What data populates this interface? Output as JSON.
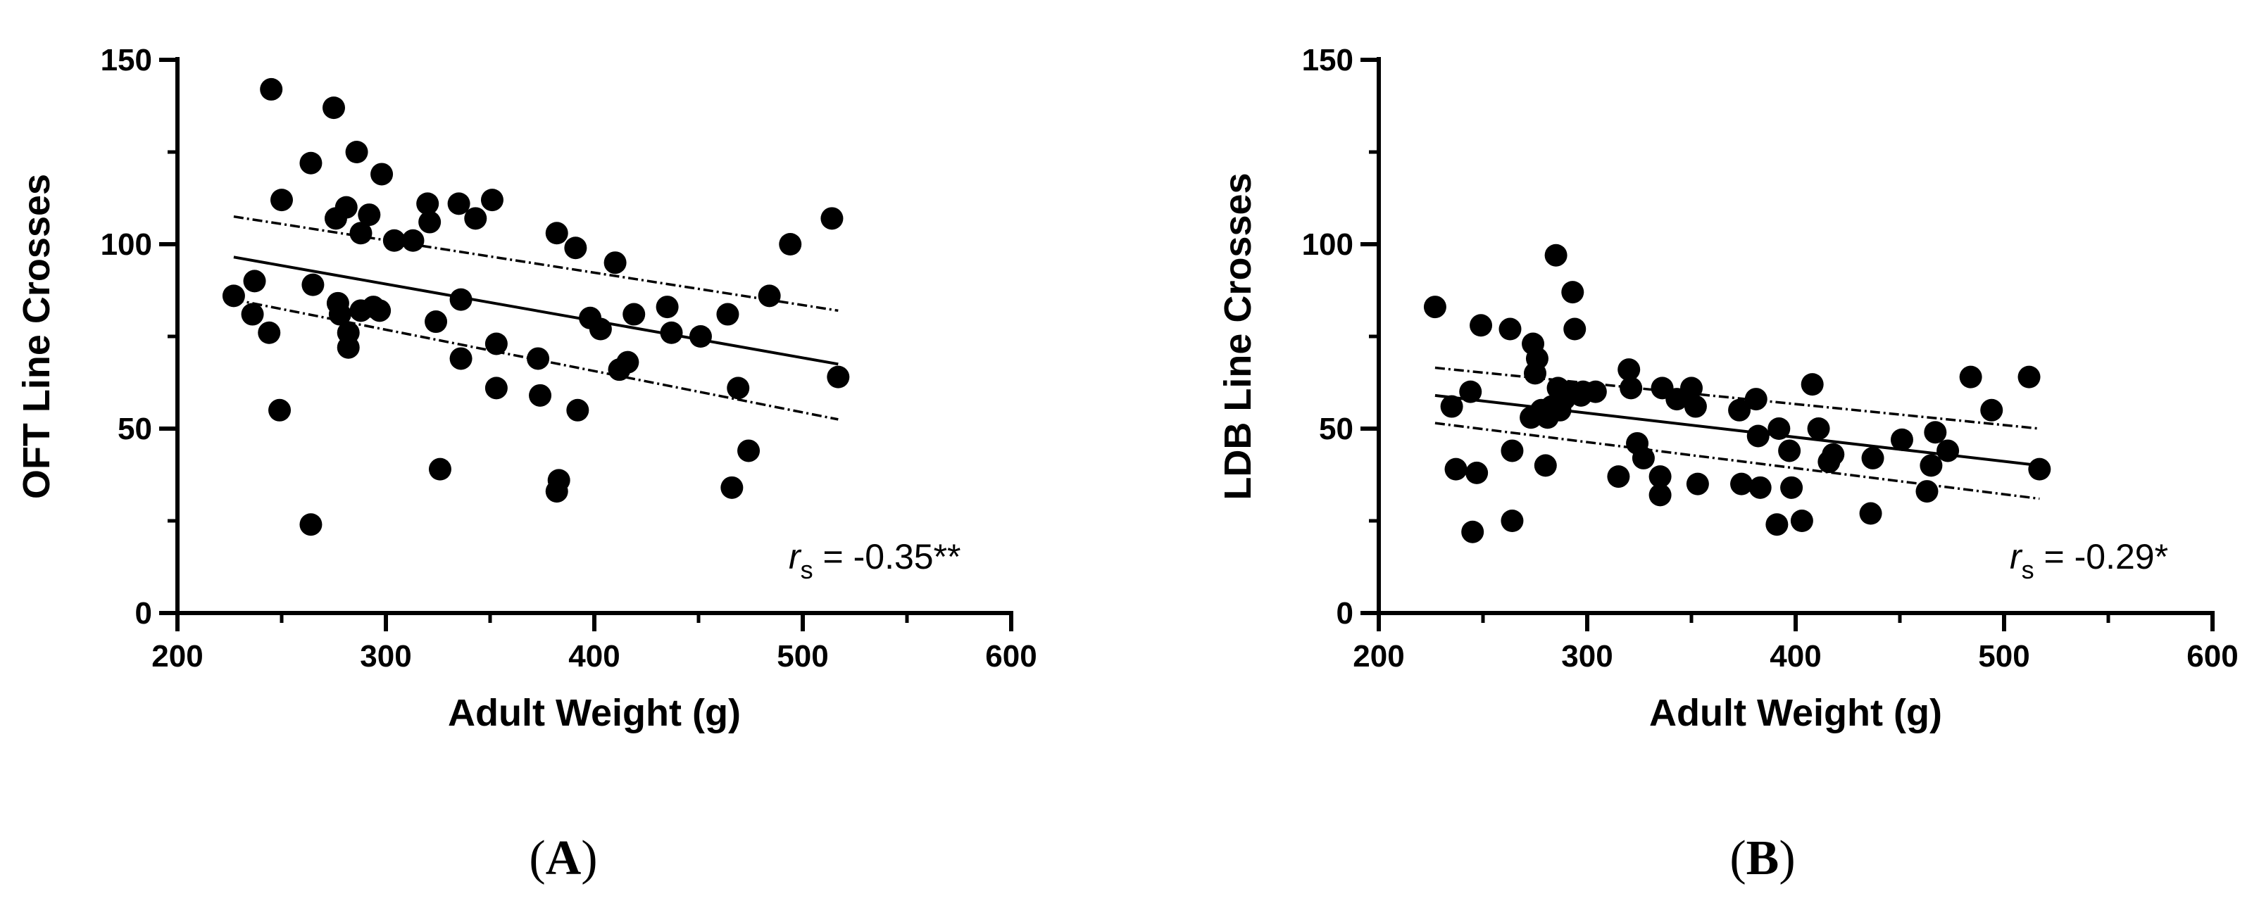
{
  "chart_data": [
    {
      "panel": "(A)",
      "panel_letter": "A",
      "type": "scatter",
      "xlabel": "Adult Weight (g)",
      "ylabel": "OFT Line Crosses",
      "xlim": [
        200,
        600
      ],
      "ylim": [
        0,
        150
      ],
      "x_ticks": [
        "200",
        "300",
        "400",
        "500",
        "600"
      ],
      "y_ticks": [
        "0",
        "50",
        "100",
        "150"
      ],
      "annotation": {
        "symbol": "r",
        "subscript": "s",
        "value": " =  -0.35**"
      },
      "regression": {
        "x": [
          227,
          517
        ],
        "fit": [
          96.5,
          67.5
        ],
        "ci_upper": [
          107.5,
          82
        ],
        "ci_lower": [
          85,
          52.5
        ]
      },
      "points": [
        [
          227,
          86
        ],
        [
          237,
          90
        ],
        [
          236,
          81
        ],
        [
          244,
          76
        ],
        [
          245,
          142
        ],
        [
          250,
          112
        ],
        [
          249,
          55
        ],
        [
          264,
          122
        ],
        [
          265,
          89
        ],
        [
          264,
          24
        ],
        [
          275,
          137
        ],
        [
          276,
          107
        ],
        [
          277,
          84
        ],
        [
          278,
          81
        ],
        [
          281,
          110
        ],
        [
          282,
          76
        ],
        [
          282,
          72
        ],
        [
          286,
          125
        ],
        [
          288,
          103
        ],
        [
          288,
          82
        ],
        [
          292,
          108
        ],
        [
          294,
          83
        ],
        [
          297,
          82
        ],
        [
          298,
          119
        ],
        [
          304,
          101
        ],
        [
          313,
          101
        ],
        [
          320,
          111
        ],
        [
          321,
          106
        ],
        [
          324,
          79
        ],
        [
          326,
          39
        ],
        [
          335,
          111
        ],
        [
          336,
          69
        ],
        [
          336,
          85
        ],
        [
          343,
          107
        ],
        [
          351,
          112
        ],
        [
          353,
          73
        ],
        [
          353,
          61
        ],
        [
          373,
          69
        ],
        [
          374,
          59
        ],
        [
          382,
          103
        ],
        [
          383,
          36
        ],
        [
          382,
          33
        ],
        [
          391,
          99
        ],
        [
          392,
          55
        ],
        [
          398,
          80
        ],
        [
          403,
          77
        ],
        [
          410,
          95
        ],
        [
          412,
          66
        ],
        [
          416,
          68
        ],
        [
          419,
          81
        ],
        [
          435,
          83
        ],
        [
          437,
          76
        ],
        [
          451,
          75
        ],
        [
          464,
          81
        ],
        [
          466,
          34
        ],
        [
          469,
          61
        ],
        [
          474,
          44
        ],
        [
          484,
          86
        ],
        [
          494,
          100
        ],
        [
          514,
          107
        ],
        [
          517,
          64
        ]
      ]
    },
    {
      "panel": "(B)",
      "panel_letter": "B",
      "type": "scatter",
      "xlabel": "Adult Weight (g)",
      "ylabel": "LDB Line Crosses",
      "xlim": [
        200,
        600
      ],
      "ylim": [
        0,
        150
      ],
      "x_ticks": [
        "200",
        "300",
        "400",
        "500",
        "600"
      ],
      "y_ticks": [
        "0",
        "50",
        "100",
        "150"
      ],
      "annotation": {
        "symbol": "r",
        "subscript": "s",
        "value": " =  -0.29*"
      },
      "regression": {
        "x": [
          227,
          517
        ],
        "fit": [
          59,
          40
        ],
        "ci_upper": [
          66.5,
          50
        ],
        "ci_lower": [
          51.5,
          31
        ]
      },
      "points": [
        [
          227,
          83
        ],
        [
          235,
          56
        ],
        [
          237,
          39
        ],
        [
          244,
          60
        ],
        [
          245,
          22
        ],
        [
          247,
          38
        ],
        [
          249,
          78
        ],
        [
          263,
          77
        ],
        [
          264,
          44
        ],
        [
          264,
          25
        ],
        [
          273,
          53
        ],
        [
          274,
          73
        ],
        [
          275,
          65
        ],
        [
          276,
          69
        ],
        [
          278,
          55
        ],
        [
          280,
          40
        ],
        [
          281,
          53
        ],
        [
          283,
          56
        ],
        [
          285,
          97
        ],
        [
          286,
          61
        ],
        [
          287,
          55
        ],
        [
          289,
          58
        ],
        [
          291,
          60
        ],
        [
          293,
          87
        ],
        [
          294,
          77
        ],
        [
          297,
          59
        ],
        [
          298,
          60
        ],
        [
          304,
          60
        ],
        [
          315,
          37
        ],
        [
          320,
          66
        ],
        [
          321,
          61
        ],
        [
          324,
          46
        ],
        [
          327,
          42
        ],
        [
          335,
          37
        ],
        [
          335,
          32
        ],
        [
          336,
          61
        ],
        [
          343,
          58
        ],
        [
          350,
          61
        ],
        [
          352,
          56
        ],
        [
          353,
          35
        ],
        [
          373,
          55
        ],
        [
          374,
          35
        ],
        [
          381,
          58
        ],
        [
          382,
          48
        ],
        [
          383,
          34
        ],
        [
          391,
          24
        ],
        [
          392,
          50
        ],
        [
          397,
          44
        ],
        [
          398,
          34
        ],
        [
          403,
          25
        ],
        [
          408,
          62
        ],
        [
          411,
          50
        ],
        [
          416,
          41
        ],
        [
          418,
          43
        ],
        [
          436,
          27
        ],
        [
          437,
          42
        ],
        [
          451,
          47
        ],
        [
          463,
          33
        ],
        [
          465,
          40
        ],
        [
          467,
          49
        ],
        [
          473,
          44
        ],
        [
          484,
          64
        ],
        [
          494,
          55
        ],
        [
          512,
          64
        ],
        [
          517,
          39
        ]
      ]
    }
  ]
}
